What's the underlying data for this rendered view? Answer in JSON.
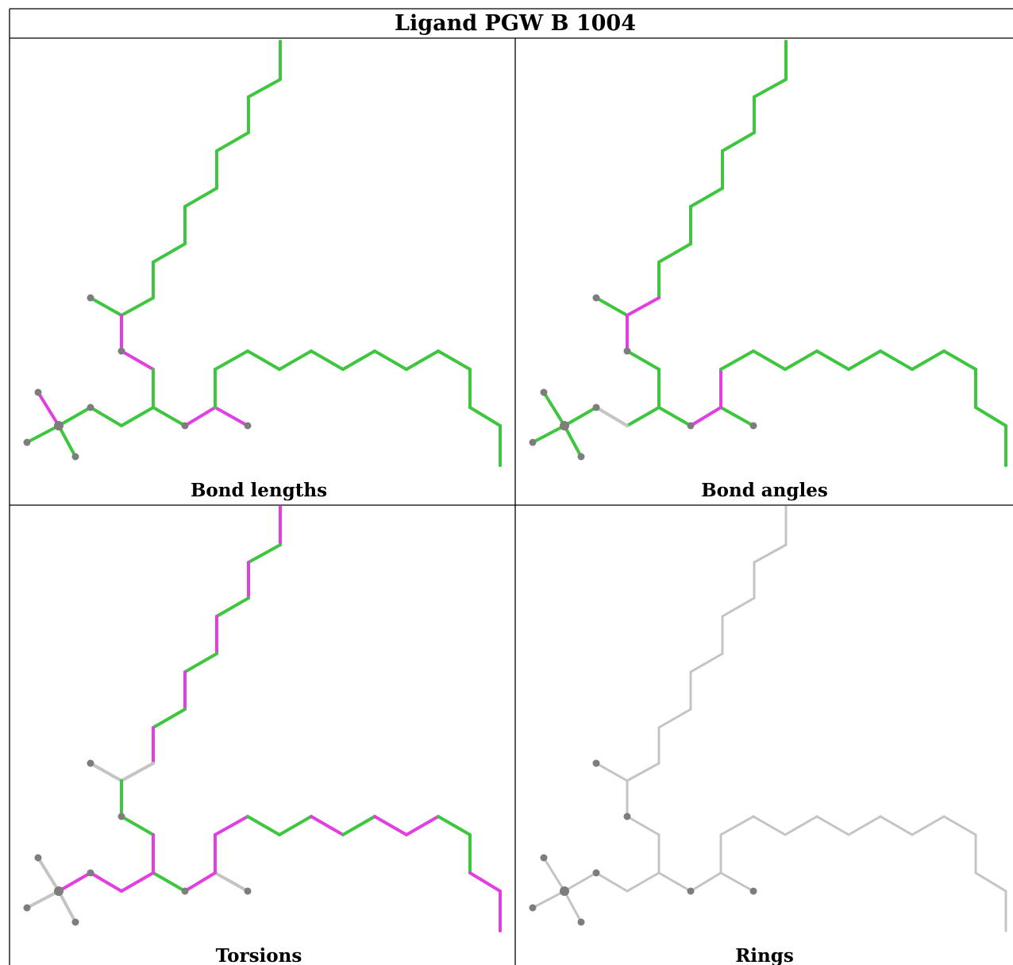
{
  "title": "Ligand PGW B 1004",
  "panels": [
    {
      "caption": "Bond lengths"
    },
    {
      "caption": "Bond angles"
    },
    {
      "caption": "Torsions"
    },
    {
      "caption": "Rings"
    }
  ],
  "colors": {
    "good": "#3ec63e",
    "outlier": "#e23ee2",
    "neutral": "#c4c4c4",
    "atom": "#7d7d7d"
  }
}
